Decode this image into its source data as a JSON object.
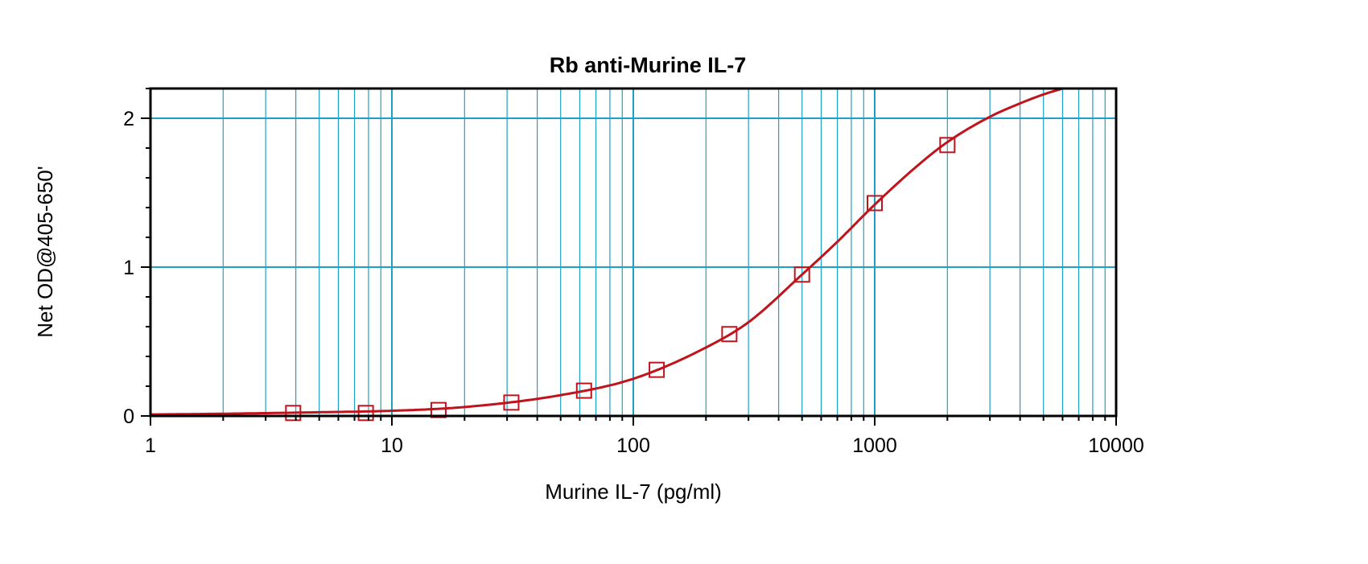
{
  "chart_data": {
    "type": "scatter",
    "title": "Rb anti-Murine IL-7",
    "xlabel": "Murine IL-7 (pg/ml)",
    "ylabel": "Net OD@405-650'",
    "x_scale": "log",
    "xlim": [
      1,
      10000
    ],
    "ylim": [
      0,
      2.2
    ],
    "x_ticks": [
      1,
      10,
      100,
      1000,
      10000
    ],
    "x_tick_labels": [
      "1",
      "10",
      "100",
      "1000",
      "10000"
    ],
    "y_ticks": [
      0,
      1,
      2
    ],
    "y_tick_labels": [
      "0",
      "1",
      "2"
    ],
    "grid": true,
    "legend": "none",
    "series": [
      {
        "marker": "open-square",
        "x": [
          3.9,
          7.8,
          15.6,
          31.25,
          62.5,
          125,
          250,
          500,
          1000,
          2000
        ],
        "y": [
          0.02,
          0.02,
          0.04,
          0.09,
          0.17,
          0.31,
          0.55,
          0.95,
          1.43,
          1.82
        ]
      }
    ],
    "fit_curve": {
      "x": [
        1,
        2,
        5,
        10,
        20,
        50,
        100,
        200,
        300,
        500,
        700,
        1000,
        1500,
        2000,
        3000,
        4000,
        5000,
        6000
      ],
      "y": [
        0.01,
        0.015,
        0.025,
        0.035,
        0.06,
        0.14,
        0.25,
        0.46,
        0.63,
        0.95,
        1.17,
        1.42,
        1.68,
        1.84,
        2.01,
        2.1,
        2.16,
        2.2
      ]
    },
    "colors": {
      "series": "#c0141c",
      "grid": "#1fa0c8",
      "axis": "#000000"
    }
  }
}
